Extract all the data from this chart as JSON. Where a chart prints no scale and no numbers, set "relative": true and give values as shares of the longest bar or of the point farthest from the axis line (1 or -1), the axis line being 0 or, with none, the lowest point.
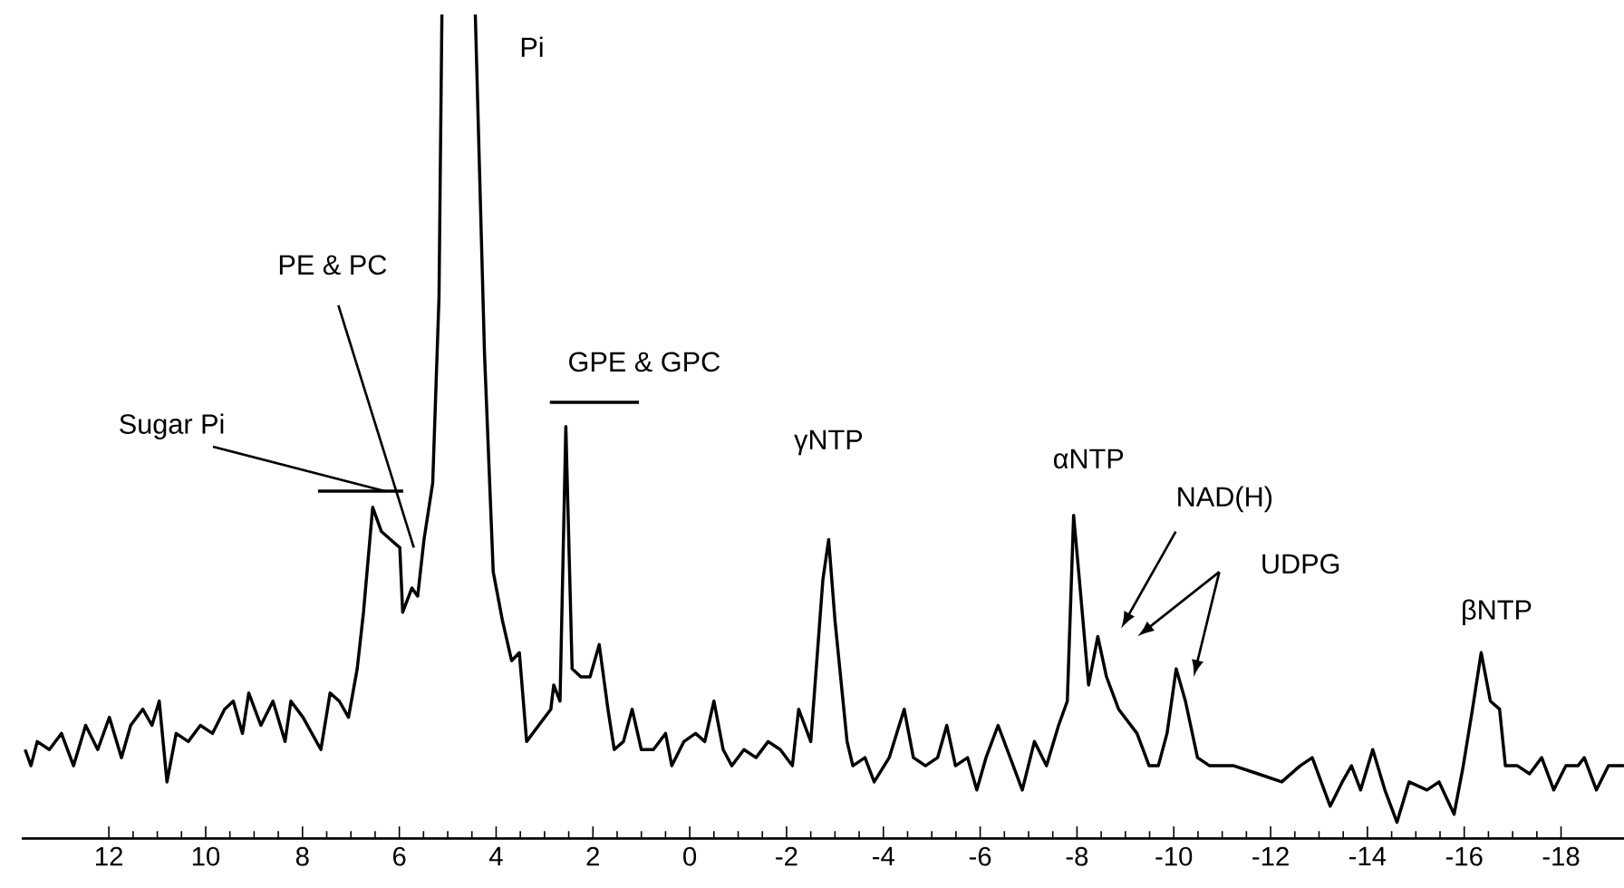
{
  "chart_data": {
    "type": "line",
    "relative": true,
    "xlim": [
      13.8,
      -19.3
    ],
    "xticks": [
      12,
      10,
      8,
      6,
      4,
      2,
      0,
      -2,
      -4,
      -6,
      -8,
      -10,
      -12,
      -14,
      -16,
      -18
    ],
    "series": [
      {
        "color": "#000000",
        "x": [
          13.73,
          13.61,
          13.48,
          13.23,
          12.98,
          12.73,
          12.48,
          12.23,
          11.99,
          11.74,
          11.55,
          11.3,
          11.11,
          10.96,
          10.8,
          10.61,
          10.36,
          10.11,
          9.86,
          9.61,
          9.43,
          9.24,
          9.11,
          8.86,
          8.61,
          8.36,
          8.24,
          7.99,
          7.62,
          7.43,
          7.24,
          7.05,
          6.87,
          6.74,
          6.55,
          6.37,
          6.18,
          5.99,
          5.93,
          5.74,
          5.62,
          5.49,
          5.31,
          5.18,
          5.12,
          4.8,
          4.43,
          4.24,
          4.06,
          3.87,
          3.68,
          3.52,
          3.37,
          3.12,
          2.87,
          2.81,
          2.68,
          2.56,
          2.43,
          2.25,
          2.06,
          1.87,
          1.69,
          1.56,
          1.37,
          1.19,
          1.0,
          0.75,
          0.5,
          0.37,
          0.12,
          -0.12,
          -0.31,
          -0.5,
          -0.69,
          -0.87,
          -1.12,
          -1.37,
          -1.62,
          -1.87,
          -2.12,
          -2.25,
          -2.5,
          -2.75,
          -2.87,
          -3.0,
          -3.25,
          -3.37,
          -3.62,
          -3.81,
          -4.12,
          -4.43,
          -4.62,
          -4.87,
          -5.12,
          -5.31,
          -5.49,
          -5.74,
          -5.93,
          -6.12,
          -6.37,
          -6.62,
          -6.87,
          -7.12,
          -7.37,
          -7.62,
          -7.8,
          -7.93,
          -8.05,
          -8.24,
          -8.43,
          -8.61,
          -8.86,
          -9.24,
          -9.49,
          -9.68,
          -9.86,
          -10.05,
          -10.24,
          -10.49,
          -10.74,
          -11.24,
          -11.74,
          -12.23,
          -12.61,
          -12.86,
          -13.23,
          -13.48,
          -13.67,
          -13.86,
          -14.11,
          -14.36,
          -14.61,
          -14.86,
          -15.23,
          -15.48,
          -15.79,
          -15.98,
          -16.17,
          -16.35,
          -16.54,
          -16.73,
          -16.85,
          -17.1,
          -17.35,
          -17.6,
          -17.85,
          -18.1,
          -18.35,
          -18.48,
          -18.73,
          -18.98,
          -19.3
        ],
        "values": [
          0.09,
          0.07,
          0.1,
          0.09,
          0.11,
          0.07,
          0.12,
          0.09,
          0.13,
          0.08,
          0.12,
          0.14,
          0.12,
          0.15,
          0.05,
          0.11,
          0.1,
          0.12,
          0.11,
          0.14,
          0.15,
          0.11,
          0.16,
          0.12,
          0.15,
          0.1,
          0.15,
          0.13,
          0.09,
          0.16,
          0.15,
          0.13,
          0.19,
          0.26,
          0.39,
          0.36,
          0.35,
          0.34,
          0.26,
          0.29,
          0.28,
          0.35,
          0.42,
          0.65,
          1,
          null,
          1,
          0.58,
          0.31,
          0.25,
          0.2,
          0.21,
          0.1,
          0.12,
          0.14,
          0.17,
          0.15,
          0.49,
          0.19,
          0.18,
          0.18,
          0.22,
          0.14,
          0.09,
          0.1,
          0.14,
          0.09,
          0.09,
          0.11,
          0.07,
          0.1,
          0.11,
          0.1,
          0.15,
          0.09,
          0.07,
          0.09,
          0.08,
          0.1,
          0.09,
          0.07,
          0.14,
          0.1,
          0.3,
          0.35,
          0.25,
          0.1,
          0.07,
          0.08,
          0.05,
          0.08,
          0.14,
          0.08,
          0.07,
          0.08,
          0.12,
          0.07,
          0.08,
          0.04,
          0.08,
          0.12,
          0.08,
          0.04,
          0.1,
          0.07,
          0.12,
          0.15,
          0.38,
          0.3,
          0.17,
          0.23,
          0.18,
          0.14,
          0.11,
          0.07,
          0.07,
          0.11,
          0.19,
          0.15,
          0.08,
          0.07,
          0.07,
          0.06,
          0.05,
          0.07,
          0.08,
          0.02,
          0.05,
          0.07,
          0.04,
          0.09,
          0.04,
          0.0,
          0.05,
          0.04,
          0.05,
          0.01,
          0.07,
          0.14,
          0.21,
          0.15,
          0.14,
          0.07,
          0.07,
          0.06,
          0.08,
          0.04,
          0.07,
          0.07,
          0.08,
          0.04,
          0.07,
          0.07
        ]
      }
    ],
    "annotations": [
      "Sugar Pi",
      "PE & PC",
      "Pi",
      "GPE & GPC",
      "γNTP",
      "αNTP",
      "NAD(H)",
      "UDPG",
      "βNTP"
    ]
  }
}
